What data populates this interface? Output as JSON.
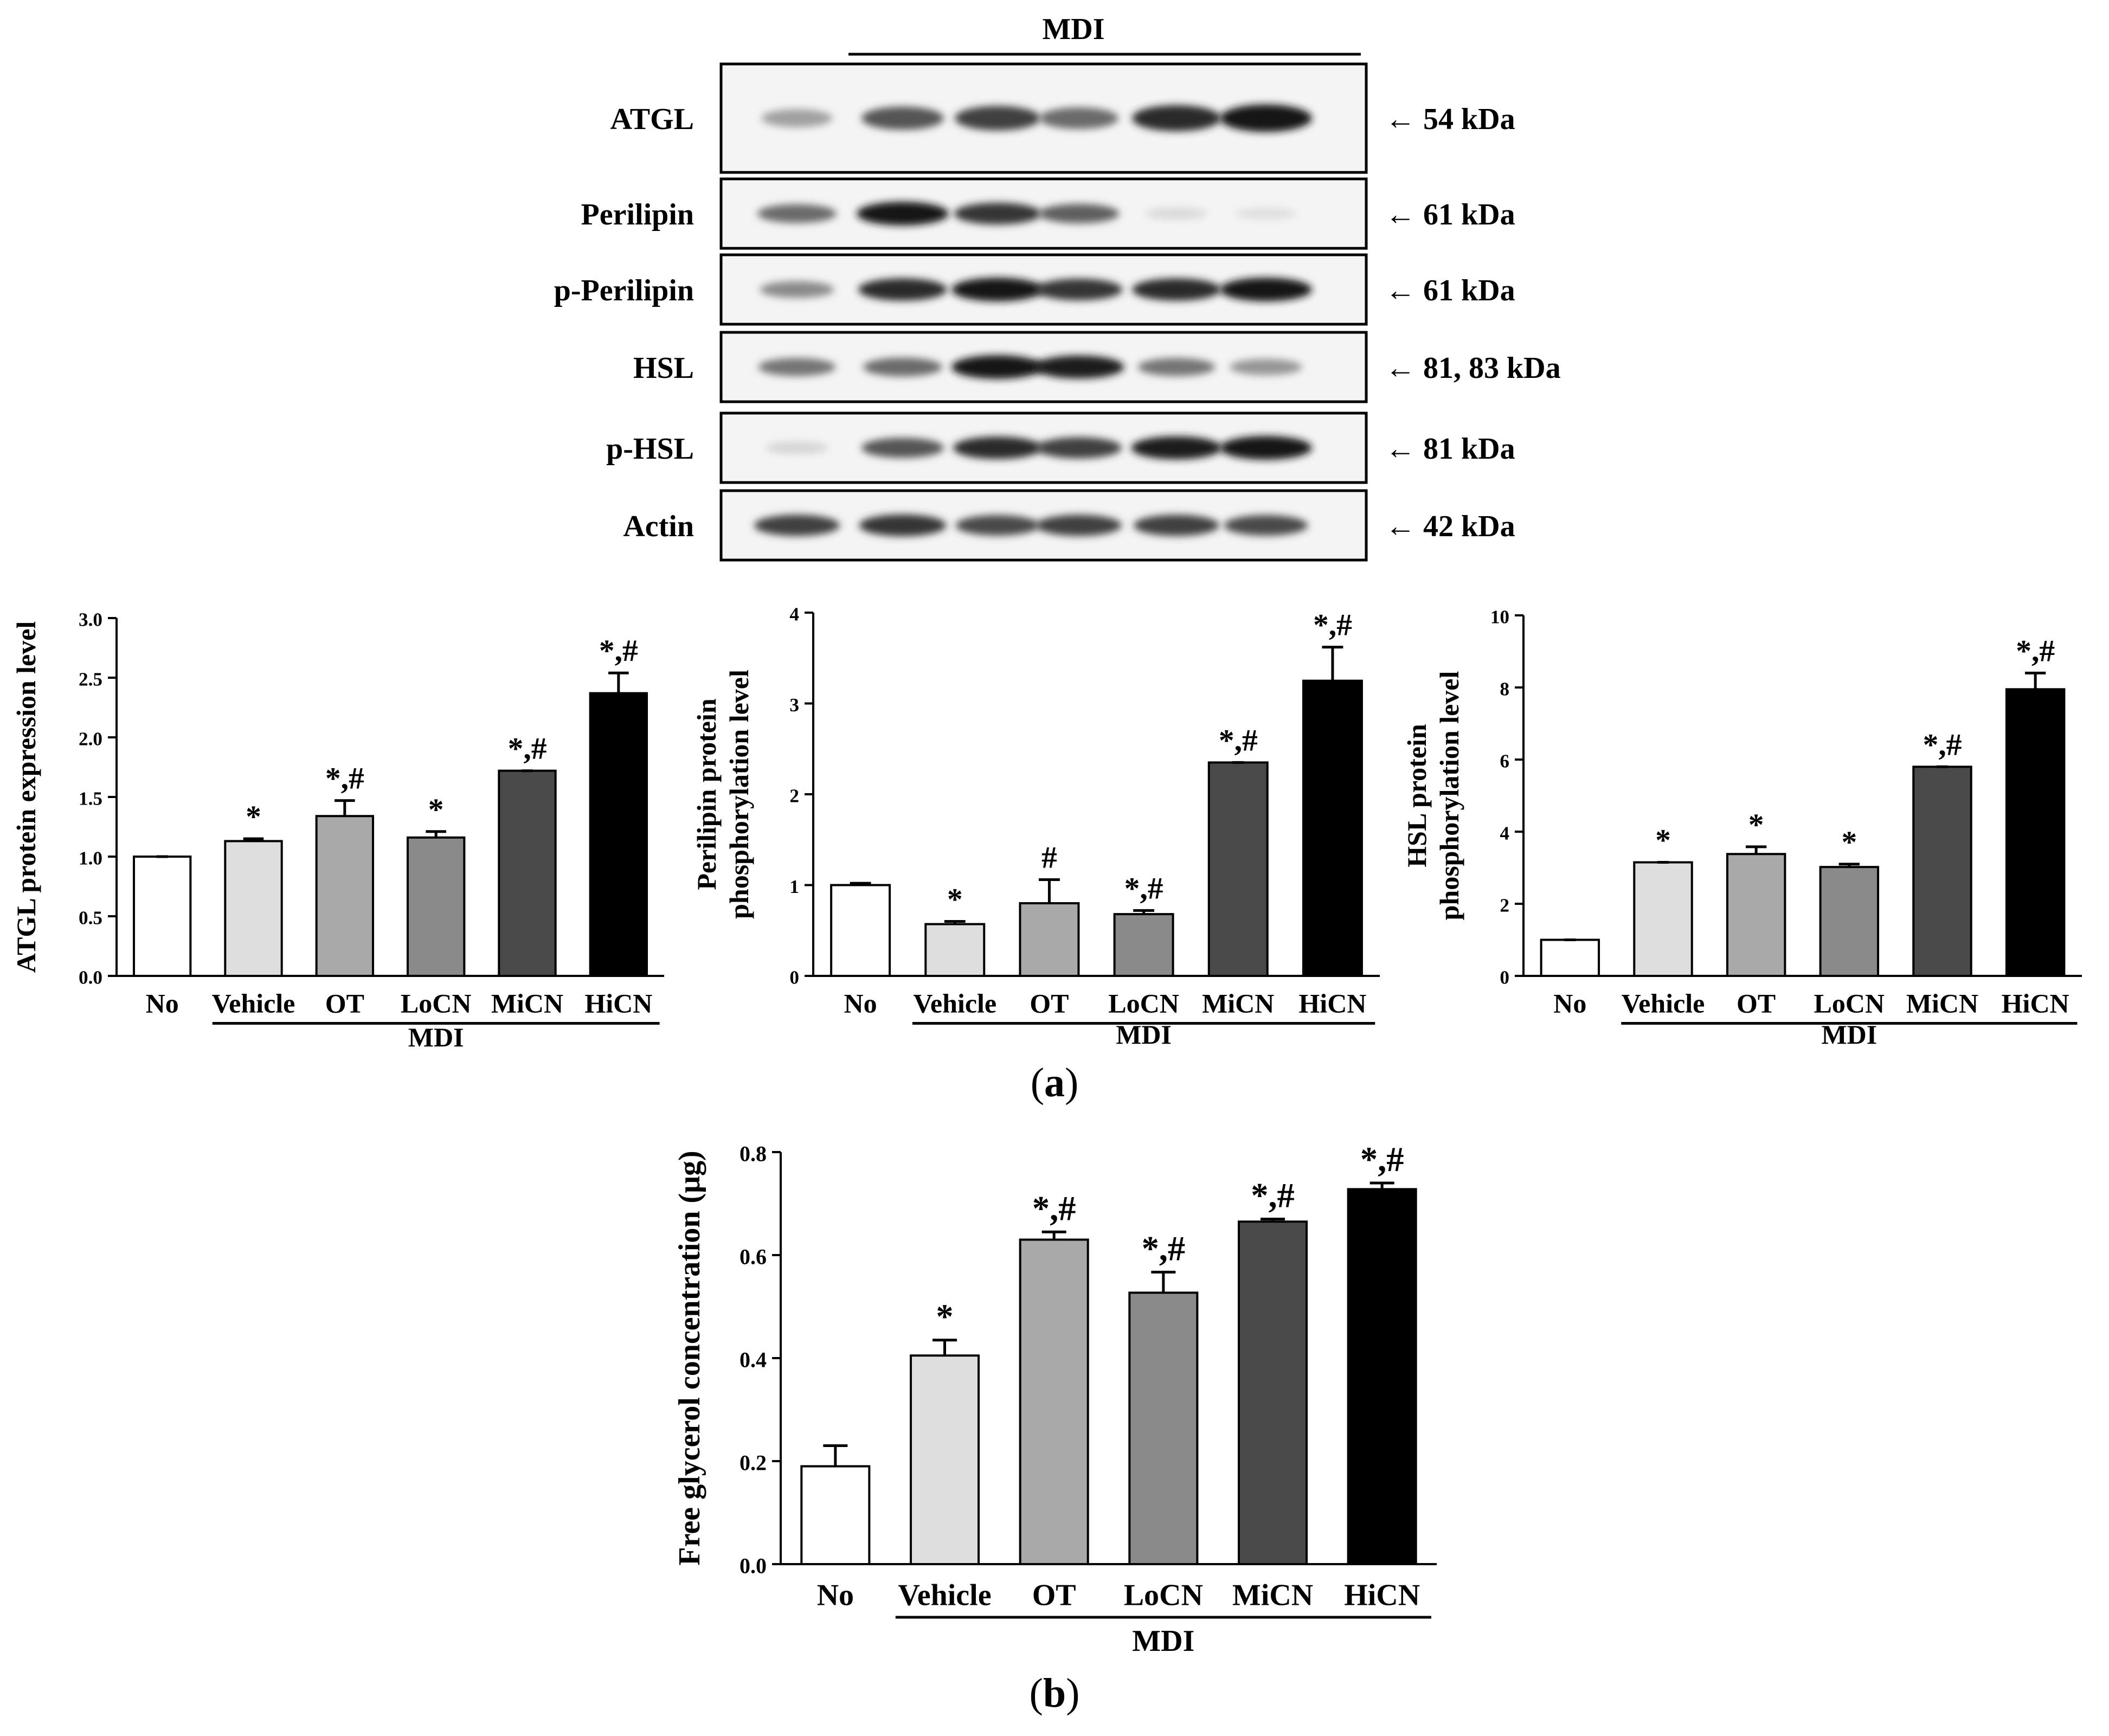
{
  "western_blot": {
    "group_label": "MDI",
    "lanes": [
      "No",
      "Vehicle",
      "OT",
      "LoCN",
      "MiCN",
      "HiCN"
    ],
    "rows": [
      {
        "protein": "ATGL",
        "size": "54 kDa",
        "intensity": [
          0.35,
          0.7,
          0.8,
          0.6,
          0.9,
          1.0
        ]
      },
      {
        "protein": "Perilipin",
        "size": "61 kDa",
        "intensity": [
          0.6,
          1.0,
          0.85,
          0.65,
          0.08,
          0.05
        ]
      },
      {
        "protein": "p-Perilipin",
        "size": "61 kDa",
        "intensity": [
          0.45,
          0.9,
          1.0,
          0.85,
          0.9,
          1.0
        ]
      },
      {
        "protein": "HSL",
        "size": "81, 83 kDa",
        "intensity": [
          0.55,
          0.6,
          1.0,
          0.95,
          0.55,
          0.4
        ]
      },
      {
        "protein": "p-HSL",
        "size": "81 kDa",
        "intensity": [
          0.1,
          0.7,
          0.9,
          0.8,
          0.95,
          1.0
        ]
      },
      {
        "protein": "Actin",
        "size": "42 kDa",
        "intensity": [
          0.8,
          0.85,
          0.75,
          0.8,
          0.8,
          0.75
        ]
      }
    ]
  },
  "panel_labels": {
    "a": "a",
    "b": "b"
  },
  "chart_data": [
    {
      "type": "bar",
      "ylabel": "ATGL  protein  expression level",
      "categories": [
        "No",
        "Vehicle",
        "OT",
        "LoCN",
        "MiCN",
        "HiCN"
      ],
      "group_label": "MDI",
      "values": [
        1.0,
        1.13,
        1.34,
        1.16,
        1.72,
        2.37
      ],
      "errors": [
        0.0,
        0.02,
        0.13,
        0.05,
        0.0,
        0.17
      ],
      "annotations": [
        "",
        "*",
        "*,#",
        "*",
        "*,#",
        "*,#"
      ],
      "ylim": [
        0.0,
        3.0
      ],
      "yticks": [
        "0.0",
        "0.5",
        "1.0",
        "1.5",
        "2.0",
        "2.5",
        "3.0"
      ],
      "tick_values": [
        0.0,
        0.5,
        1.0,
        1.5,
        2.0,
        2.5,
        3.0
      ],
      "colors": [
        "#ffffff",
        "#dedede",
        "#a9a9a9",
        "#8a8a8a",
        "#4a4a4a",
        "#000000"
      ]
    },
    {
      "type": "bar",
      "ylabel_lines": [
        "Perilipin protein",
        "phosphorylation  level"
      ],
      "categories": [
        "No",
        "Vehicle",
        "OT",
        "LoCN",
        "MiCN",
        "HiCN"
      ],
      "group_label": "MDI",
      "values": [
        1.0,
        0.57,
        0.8,
        0.68,
        2.35,
        3.25
      ],
      "errors": [
        0.02,
        0.03,
        0.26,
        0.04,
        0.0,
        0.37
      ],
      "annotations": [
        "",
        "*",
        "#",
        "*,#",
        "*,#",
        "*,#"
      ],
      "ylim": [
        0,
        4
      ],
      "yticks": [
        "0",
        "1",
        "2",
        "3",
        "4"
      ],
      "tick_values": [
        0,
        1,
        2,
        3,
        4
      ],
      "colors": [
        "#ffffff",
        "#dedede",
        "#a9a9a9",
        "#8a8a8a",
        "#4a4a4a",
        "#000000"
      ]
    },
    {
      "type": "bar",
      "ylabel_lines": [
        "HSL protein",
        "phosphorylation  level"
      ],
      "categories": [
        "No",
        "Vehicle",
        "OT",
        "LoCN",
        "MiCN",
        "HiCN"
      ],
      "group_label": "MDI",
      "values": [
        1.0,
        3.15,
        3.38,
        3.02,
        5.8,
        7.95
      ],
      "errors": [
        0.0,
        0.0,
        0.2,
        0.08,
        0.0,
        0.45
      ],
      "annotations": [
        "",
        "*",
        "*",
        "*",
        "*,#",
        "*,#"
      ],
      "ylim": [
        0,
        10
      ],
      "yticks": [
        "0",
        "2",
        "4",
        "6",
        "8",
        "10"
      ],
      "tick_values": [
        0,
        2,
        4,
        6,
        8,
        10
      ],
      "colors": [
        "#ffffff",
        "#dedede",
        "#a9a9a9",
        "#8a8a8a",
        "#4a4a4a",
        "#000000"
      ]
    },
    {
      "type": "bar",
      "ylabel": "Free glycerol concentration (μg)",
      "categories": [
        "No",
        "Vehicle",
        "OT",
        "LoCN",
        "MiCN",
        "HiCN"
      ],
      "group_label": "MDI",
      "values": [
        0.19,
        0.405,
        0.63,
        0.527,
        0.665,
        0.728
      ],
      "errors": [
        0.04,
        0.03,
        0.015,
        0.04,
        0.005,
        0.012
      ],
      "annotations": [
        "",
        "*",
        "*,#",
        "*,#",
        "*,#",
        "*,#"
      ],
      "ylim": [
        0.0,
        0.8
      ],
      "yticks": [
        "0.0",
        "0.2",
        "0.4",
        "0.6",
        "0.8"
      ],
      "tick_values": [
        0.0,
        0.2,
        0.4,
        0.6,
        0.8
      ],
      "colors": [
        "#ffffff",
        "#dedede",
        "#a9a9a9",
        "#8a8a8a",
        "#4a4a4a",
        "#000000"
      ]
    }
  ]
}
